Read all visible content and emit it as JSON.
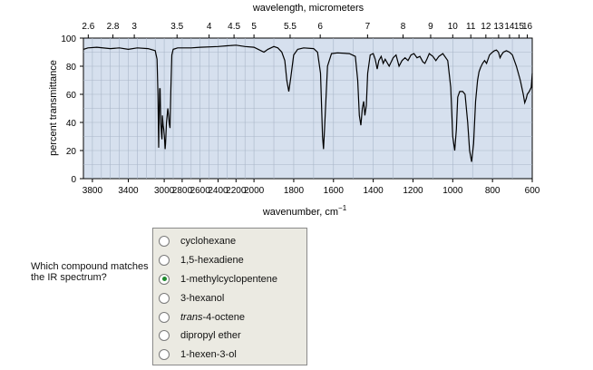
{
  "chart_data": {
    "type": "line",
    "top_axis_label": "wavelength, micrometers",
    "top_ticks": [
      "2.6",
      "2.8",
      "3",
      "3.5",
      "4",
      "4.5",
      "5",
      "5.5",
      "6",
      "7",
      "8",
      "9",
      "10",
      "11",
      "12",
      "13",
      "14",
      "15",
      "16"
    ],
    "xlabel": "wavenumber, cm",
    "xlabel_sup": "−1",
    "ylabel": "percent transmittance",
    "xlim": [
      3900,
      600
    ],
    "ylim": [
      0,
      100
    ],
    "x_ticks": [
      3800,
      3400,
      3000,
      2600,
      2200,
      1800,
      1400,
      1000
    ],
    "x_ticks_labels": [
      "3800",
      "3400",
      "3000",
      "2600",
      "2200",
      "1800",
      "1400",
      "1000"
    ],
    "x_ticks2": [
      2800,
      2400,
      2000,
      1600,
      1200,
      800,
      600
    ],
    "x_ticks2_labels": [
      "2800",
      "2400",
      "2000",
      "1600",
      "1200",
      "800",
      "600"
    ],
    "y_ticks": [
      0,
      20,
      40,
      60,
      80,
      100
    ],
    "y_tick_labels": [
      "0",
      "20",
      "40",
      "60",
      "80",
      "100"
    ],
    "grid": true,
    "background": "#d6e0ee",
    "line_color": "#000000",
    "series": [
      {
        "values": [
          [
            3900,
            92
          ],
          [
            3850,
            93
          ],
          [
            3750,
            93.5
          ],
          [
            3600,
            92.5
          ],
          [
            3500,
            93
          ],
          [
            3400,
            92
          ],
          [
            3300,
            93
          ],
          [
            3180,
            92.5
          ],
          [
            3100,
            91
          ],
          [
            3080,
            85
          ],
          [
            3070,
            60
          ],
          [
            3062,
            22
          ],
          [
            3058,
            40
          ],
          [
            3050,
            64
          ],
          [
            3045,
            64
          ],
          [
            3038,
            40
          ],
          [
            3030,
            32
          ],
          [
            3025,
            28
          ],
          [
            3020,
            45
          ],
          [
            3012,
            38
          ],
          [
            3005,
            35
          ],
          [
            2998,
            30
          ],
          [
            2990,
            21
          ],
          [
            2985,
            25
          ],
          [
            2975,
            40
          ],
          [
            2960,
            50
          ],
          [
            2952,
            45
          ],
          [
            2945,
            40
          ],
          [
            2935,
            36
          ],
          [
            2925,
            65
          ],
          [
            2915,
            88
          ],
          [
            2900,
            92
          ],
          [
            2850,
            93
          ],
          [
            2700,
            93
          ],
          [
            2600,
            93.5
          ],
          [
            2400,
            94
          ],
          [
            2300,
            94.5
          ],
          [
            2200,
            95
          ],
          [
            2100,
            94
          ],
          [
            2000,
            93.5
          ],
          [
            1950,
            90
          ],
          [
            1930,
            92
          ],
          [
            1900,
            94
          ],
          [
            1880,
            93
          ],
          [
            1860,
            90
          ],
          [
            1845,
            84
          ],
          [
            1835,
            70
          ],
          [
            1825,
            62
          ],
          [
            1815,
            72
          ],
          [
            1800,
            88
          ],
          [
            1780,
            92
          ],
          [
            1750,
            93
          ],
          [
            1700,
            92.5
          ],
          [
            1680,
            90
          ],
          [
            1665,
            75
          ],
          [
            1655,
            30
          ],
          [
            1650,
            21
          ],
          [
            1645,
            35
          ],
          [
            1630,
            80
          ],
          [
            1610,
            89
          ],
          [
            1580,
            89.5
          ],
          [
            1520,
            89
          ],
          [
            1490,
            87
          ],
          [
            1478,
            70
          ],
          [
            1470,
            45
          ],
          [
            1462,
            38
          ],
          [
            1455,
            50
          ],
          [
            1448,
            55
          ],
          [
            1442,
            45
          ],
          [
            1435,
            52
          ],
          [
            1428,
            75
          ],
          [
            1415,
            88
          ],
          [
            1400,
            89
          ],
          [
            1390,
            85
          ],
          [
            1380,
            78
          ],
          [
            1372,
            84
          ],
          [
            1360,
            87
          ],
          [
            1350,
            82
          ],
          [
            1340,
            85
          ],
          [
            1320,
            80
          ],
          [
            1300,
            86
          ],
          [
            1285,
            88
          ],
          [
            1270,
            80
          ],
          [
            1255,
            84
          ],
          [
            1240,
            86
          ],
          [
            1225,
            84
          ],
          [
            1210,
            88
          ],
          [
            1195,
            89
          ],
          [
            1180,
            86
          ],
          [
            1165,
            87
          ],
          [
            1150,
            83
          ],
          [
            1140,
            82
          ],
          [
            1130,
            85
          ],
          [
            1118,
            89
          ],
          [
            1100,
            87
          ],
          [
            1085,
            84
          ],
          [
            1070,
            87
          ],
          [
            1050,
            89
          ],
          [
            1025,
            84
          ],
          [
            1010,
            65
          ],
          [
            1000,
            30
          ],
          [
            990,
            20
          ],
          [
            982,
            35
          ],
          [
            975,
            58
          ],
          [
            965,
            62
          ],
          [
            950,
            62
          ],
          [
            938,
            60
          ],
          [
            925,
            40
          ],
          [
            915,
            20
          ],
          [
            905,
            12
          ],
          [
            895,
            25
          ],
          [
            885,
            55
          ],
          [
            875,
            70
          ],
          [
            868,
            76
          ],
          [
            860,
            79
          ],
          [
            850,
            82
          ],
          [
            840,
            84
          ],
          [
            830,
            82
          ],
          [
            815,
            88
          ],
          [
            800,
            90
          ],
          [
            790,
            91
          ],
          [
            780,
            91.5
          ],
          [
            770,
            90
          ],
          [
            762,
            86
          ],
          [
            755,
            88
          ],
          [
            745,
            90
          ],
          [
            730,
            91
          ],
          [
            715,
            90
          ],
          [
            700,
            88
          ],
          [
            680,
            80
          ],
          [
            660,
            70
          ],
          [
            645,
            60
          ],
          [
            638,
            54
          ],
          [
            630,
            57
          ],
          [
            625,
            60
          ],
          [
            615,
            62
          ],
          [
            605,
            65
          ],
          [
            600,
            75
          ]
        ]
      }
    ]
  },
  "question": {
    "text": "Which compound matches the IR spectrum?"
  },
  "options": [
    {
      "label": "cyclohexane",
      "selected": false
    },
    {
      "label": "1,5-hexadiene",
      "selected": false
    },
    {
      "label": "1-methylcyclopentene",
      "selected": true
    },
    {
      "label": "3-hexanol",
      "selected": false
    },
    {
      "label": "trans-4-octene",
      "selected": false
    },
    {
      "label": "dipropyl ether",
      "selected": false
    },
    {
      "label": "1-hexen-3-ol",
      "selected": false
    }
  ]
}
